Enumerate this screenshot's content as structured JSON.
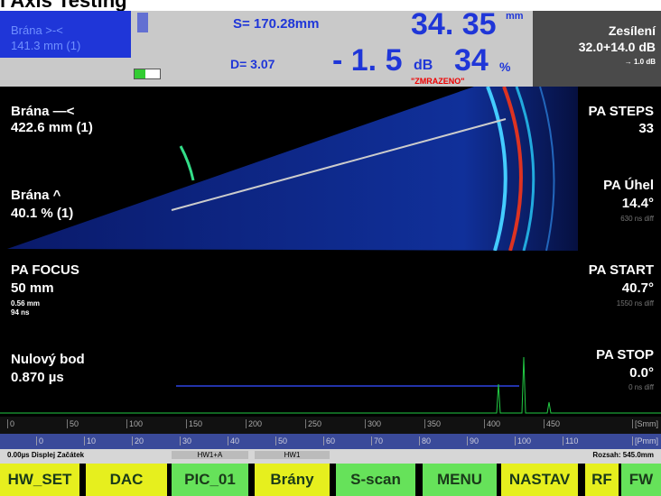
{
  "title": "l Axis Testing",
  "header": {
    "gate_label": "Brána >-<",
    "gate_value": "141.3 mm (1)",
    "s_value": "S= 170.28mm",
    "d_value": "D= 3.07",
    "depth_value": "34. 35",
    "depth_unit": "mm",
    "gain_value": "- 1. 5",
    "gain_unit": "dB",
    "amp_value": "34",
    "amp_unit": "%",
    "frozen": "\"ZMRAZENO\"",
    "gain_title": "Zesílení",
    "gain_total": "32.0+14.0 dB",
    "gain_step": "→ 1.0 dB"
  },
  "left_panel": {
    "gate_b_label": "Brána —<",
    "gate_b_value": "422.6 mm (1)",
    "gate_a_label": "Brána ^",
    "gate_a_value": "40.1 % (1)",
    "focus_label": "PA FOCUS",
    "focus_value": "50 mm",
    "focus_sub1": "0.56 mm",
    "focus_sub2": "94 ns",
    "zero_label": "Nulový bod",
    "zero_value": "0.870 µs"
  },
  "right_panel": {
    "steps_label": "PA STEPS",
    "steps_value": "33",
    "angle_label": "PA Úhel",
    "angle_value": "14.4°",
    "angle_sub": "630 ns diff",
    "start_label": "PA START",
    "start_value": "40.7°",
    "start_sub": "1550 ns diff",
    "stop_label": "PA STOP",
    "stop_value": "0.0°",
    "stop_sub": "0 ns diff"
  },
  "scale": {
    "top": [
      "0",
      "50",
      "100",
      "150",
      "200",
      "250",
      "300",
      "350",
      "400",
      "450",
      "[Smm]"
    ],
    "bottom": [
      "0",
      "10",
      "20",
      "30",
      "40",
      "50",
      "60",
      "70",
      "80",
      "90",
      "100",
      "110",
      "[Pmm]"
    ]
  },
  "status": {
    "left": "0.00µs Displej Začátek",
    "tab1": "HW1+A",
    "tab2": "HW1",
    "right": "Rozsah: 545.0mm"
  },
  "buttons": [
    "HW_SET",
    "DAC",
    "PIC_01",
    "Brány",
    "S-scan",
    "MENU",
    "NASTAV",
    "RF",
    "FW"
  ]
}
